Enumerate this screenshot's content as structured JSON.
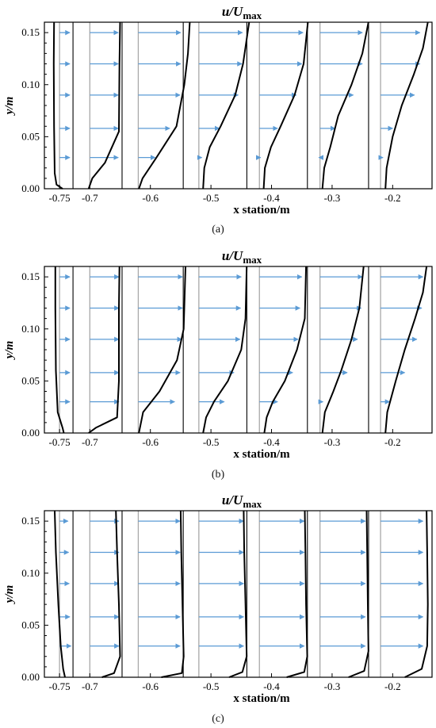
{
  "chart_data": [
    {
      "type": "line",
      "title": "u/U",
      "title_subscript": "max",
      "xlabel": "x station/m",
      "ylabel": "y/m",
      "xlim": [
        -0.775,
        -0.135
      ],
      "ylim": [
        0,
        0.16
      ],
      "x_ticks": [
        "-0.75",
        "-0.7",
        "-0.6",
        "-0.5",
        "-0.4",
        "-0.3",
        "-0.2"
      ],
      "y_ticks": [
        "0.00",
        "0.05",
        "0.10",
        "0.15"
      ],
      "stations": [
        -0.75,
        -0.7,
        -0.62,
        -0.52,
        -0.42,
        -0.32,
        -0.22
      ],
      "arrow_y": [
        0.03,
        0.058,
        0.09,
        0.12,
        0.15
      ],
      "series": [
        {
          "x": [
            -0.745,
            -0.755,
            -0.758,
            -0.759,
            -0.7595,
            -0.759
          ],
          "y": [
            0,
            0.004,
            0.015,
            0.06,
            0.12,
            0.16
          ]
        },
        {
          "x": [
            -0.702,
            -0.696,
            -0.675,
            -0.652,
            -0.651,
            -0.65
          ],
          "y": [
            0,
            0.01,
            0.025,
            0.055,
            0.12,
            0.16
          ]
        },
        {
          "x": [
            -0.619,
            -0.613,
            -0.59,
            -0.557,
            -0.544,
            -0.538,
            -0.535
          ],
          "y": [
            0,
            0.01,
            0.03,
            0.06,
            0.1,
            0.13,
            0.16
          ]
        },
        {
          "x": [
            -0.513,
            -0.511,
            -0.502,
            -0.484,
            -0.46,
            -0.447,
            -0.437
          ],
          "y": [
            0,
            0.02,
            0.04,
            0.06,
            0.09,
            0.12,
            0.16
          ]
        },
        {
          "x": [
            -0.413,
            -0.411,
            -0.401,
            -0.385,
            -0.362,
            -0.347,
            -0.34
          ],
          "y": [
            0,
            0.02,
            0.04,
            0.06,
            0.09,
            0.12,
            0.16
          ]
        },
        {
          "x": [
            -0.316,
            -0.313,
            -0.303,
            -0.29,
            -0.268,
            -0.25,
            -0.24
          ],
          "y": [
            0,
            0.02,
            0.04,
            0.07,
            0.1,
            0.13,
            0.16
          ]
        },
        {
          "x": [
            -0.212,
            -0.21,
            -0.2,
            -0.185,
            -0.165,
            -0.15,
            -0.142
          ],
          "y": [
            0,
            0.02,
            0.05,
            0.08,
            0.11,
            0.135,
            0.16
          ]
        }
      ],
      "arrow_x": [
        [
          -0.733,
          -0.733,
          -0.733,
          -0.733,
          -0.733
        ],
        [
          -0.653,
          -0.653,
          -0.653,
          -0.653,
          -0.653
        ],
        [
          -0.592,
          -0.568,
          -0.551,
          -0.55,
          -0.55
        ],
        [
          -0.515,
          -0.486,
          -0.455,
          -0.449,
          -0.448
        ],
        [
          -0.418,
          -0.39,
          -0.359,
          -0.35,
          -0.348
        ],
        [
          -0.322,
          -0.295,
          -0.265,
          -0.25,
          -0.25
        ],
        [
          -0.216,
          -0.2,
          -0.164,
          -0.155,
          -0.155
        ]
      ]
    },
    {
      "type": "line",
      "title": "u/U",
      "title_subscript": "max",
      "xlabel": "x station/m",
      "ylabel": "y/m",
      "xlim": [
        -0.775,
        -0.135
      ],
      "ylim": [
        0,
        0.16
      ],
      "x_ticks": [
        "-0.75",
        "-0.7",
        "-0.6",
        "-0.5",
        "-0.4",
        "-0.3",
        "-0.2"
      ],
      "y_ticks": [
        "0.00",
        "0.05",
        "0.10",
        "0.15"
      ],
      "stations": [
        -0.75,
        -0.7,
        -0.62,
        -0.52,
        -0.42,
        -0.32,
        -0.22
      ],
      "arrow_y": [
        0.03,
        0.058,
        0.09,
        0.12,
        0.15
      ],
      "series": [
        {
          "x": [
            -0.743,
            -0.745,
            -0.753,
            -0.756,
            -0.757,
            -0.757
          ],
          "y": [
            0,
            0.005,
            0.02,
            0.06,
            0.12,
            0.16
          ]
        },
        {
          "x": [
            -0.702,
            -0.69,
            -0.655,
            -0.652,
            -0.652,
            -0.651
          ],
          "y": [
            0,
            0.005,
            0.015,
            0.05,
            0.12,
            0.16
          ]
        },
        {
          "x": [
            -0.619,
            -0.612,
            -0.585,
            -0.556,
            -0.545,
            -0.542
          ],
          "y": [
            0,
            0.02,
            0.04,
            0.07,
            0.1,
            0.16
          ]
        },
        {
          "x": [
            -0.513,
            -0.508,
            -0.495,
            -0.472,
            -0.45,
            -0.443,
            -0.441
          ],
          "y": [
            0,
            0.015,
            0.03,
            0.05,
            0.08,
            0.11,
            0.16
          ]
        },
        {
          "x": [
            -0.412,
            -0.408,
            -0.398,
            -0.378,
            -0.358,
            -0.345,
            -0.343
          ],
          "y": [
            0,
            0.015,
            0.03,
            0.05,
            0.08,
            0.11,
            0.16
          ]
        },
        {
          "x": [
            -0.316,
            -0.312,
            -0.298,
            -0.285,
            -0.268,
            -0.255,
            -0.248
          ],
          "y": [
            0,
            0.02,
            0.04,
            0.06,
            0.09,
            0.12,
            0.16
          ]
        },
        {
          "x": [
            -0.212,
            -0.209,
            -0.195,
            -0.18,
            -0.163,
            -0.15,
            -0.144
          ],
          "y": [
            0,
            0.02,
            0.05,
            0.08,
            0.11,
            0.135,
            0.16
          ]
        }
      ],
      "arrow_x": [
        [
          -0.733,
          -0.733,
          -0.733,
          -0.733,
          -0.733
        ],
        [
          -0.652,
          -0.652,
          -0.652,
          -0.652,
          -0.652
        ],
        [
          -0.56,
          -0.551,
          -0.548,
          -0.547,
          -0.547
        ],
        [
          -0.478,
          -0.462,
          -0.452,
          -0.451,
          -0.45
        ],
        [
          -0.39,
          -0.365,
          -0.356,
          -0.353,
          -0.35
        ],
        [
          -0.315,
          -0.275,
          -0.258,
          -0.252,
          -0.25
        ],
        [
          -0.205,
          -0.18,
          -0.16,
          -0.152,
          -0.15
        ]
      ]
    },
    {
      "type": "line",
      "title": "u/U",
      "title_subscript": "max",
      "xlabel": "x station/m",
      "ylabel": "y/m",
      "xlim": [
        -0.775,
        -0.135
      ],
      "ylim": [
        0,
        0.16
      ],
      "x_ticks": [
        "-0.75",
        "-0.7",
        "-0.6",
        "-0.5",
        "-0.4",
        "-0.3",
        "-0.2"
      ],
      "y_ticks": [
        "0.00",
        "0.05",
        "0.10",
        "0.15"
      ],
      "stations": [
        -0.75,
        -0.7,
        -0.62,
        -0.52,
        -0.42,
        -0.32,
        -0.22
      ],
      "arrow_y": [
        0.03,
        0.058,
        0.09,
        0.12,
        0.15
      ],
      "series": [
        {
          "x": [
            -0.741,
            -0.744,
            -0.748,
            -0.752,
            -0.756,
            -0.758
          ],
          "y": [
            0,
            0.008,
            0.03,
            0.07,
            0.12,
            0.16
          ]
        },
        {
          "x": [
            -0.68,
            -0.66,
            -0.65,
            -0.652,
            -0.655,
            -0.657
          ],
          "y": [
            0,
            0.004,
            0.02,
            0.07,
            0.12,
            0.16
          ]
        },
        {
          "x": [
            -0.582,
            -0.548,
            -0.545,
            -0.547,
            -0.549,
            -0.55
          ],
          "y": [
            0,
            0.004,
            0.02,
            0.07,
            0.12,
            0.16
          ]
        },
        {
          "x": [
            -0.47,
            -0.448,
            -0.441,
            -0.443,
            -0.445,
            -0.446
          ],
          "y": [
            0,
            0.005,
            0.02,
            0.07,
            0.12,
            0.16
          ]
        },
        {
          "x": [
            -0.375,
            -0.346,
            -0.341,
            -0.343,
            -0.344,
            -0.345
          ],
          "y": [
            0,
            0.005,
            0.02,
            0.07,
            0.12,
            0.16
          ]
        },
        {
          "x": [
            -0.273,
            -0.247,
            -0.24,
            -0.241,
            -0.242,
            -0.243
          ],
          "y": [
            0,
            0.006,
            0.025,
            0.07,
            0.12,
            0.16
          ]
        },
        {
          "x": [
            -0.18,
            -0.152,
            -0.143,
            -0.142,
            -0.143,
            -0.144
          ],
          "y": [
            0,
            0.008,
            0.03,
            0.07,
            0.12,
            0.16
          ]
        }
      ],
      "arrow_x": [
        [
          -0.731,
          -0.733,
          -0.734,
          -0.735,
          -0.736
        ],
        [
          -0.652,
          -0.652,
          -0.652,
          -0.652,
          -0.652
        ],
        [
          -0.551,
          -0.551,
          -0.551,
          -0.551,
          -0.551
        ],
        [
          -0.446,
          -0.446,
          -0.446,
          -0.446,
          -0.446
        ],
        [
          -0.346,
          -0.346,
          -0.346,
          -0.346,
          -0.346
        ],
        [
          -0.245,
          -0.245,
          -0.245,
          -0.245,
          -0.245
        ],
        [
          -0.15,
          -0.15,
          -0.15,
          -0.15,
          -0.15
        ]
      ]
    }
  ],
  "captions": [
    "(a)",
    "(b)",
    "(c)"
  ],
  "colors": {
    "arrow": "#5b9bd5",
    "station_line": "#a8a8a8",
    "profile": "#000000",
    "divider": "#000000"
  }
}
